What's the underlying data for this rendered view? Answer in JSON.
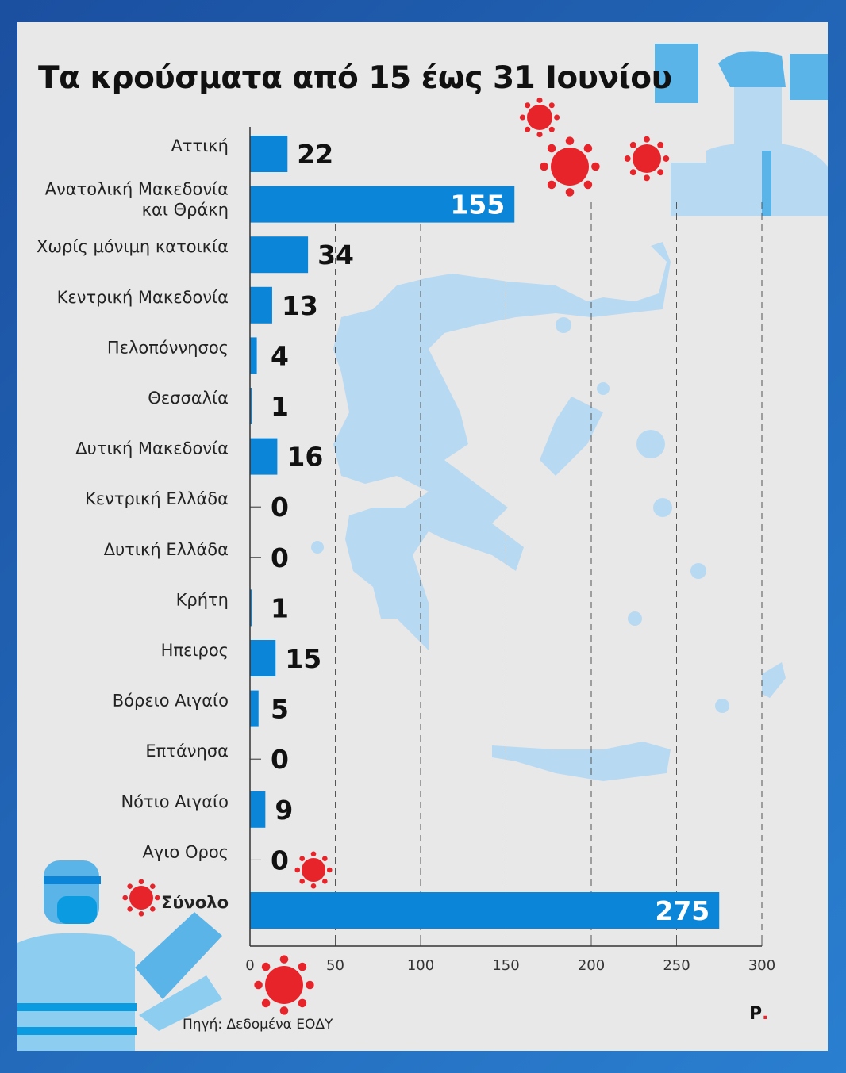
{
  "title": "Τα κρούσματα από 15 έως 31 Ιουνίου",
  "source": "Πηγή: Δεδομένα ΕΟΔΥ",
  "logo": "P",
  "colors": {
    "bar": "#0a85d8",
    "virus": "#e8242b",
    "map": "#b8d9f2",
    "background": "#e8e8e8"
  },
  "chart_data": {
    "type": "bar",
    "orientation": "horizontal",
    "categories": [
      [
        "Αττική"
      ],
      [
        "Ανατολική Μακεδονία",
        "και Θράκη"
      ],
      [
        "Χωρίς μόνιμη κατοικία"
      ],
      [
        "Κεντρική Μακεδονία"
      ],
      [
        "Πελοπόννησος"
      ],
      [
        "Θεσσαλία"
      ],
      [
        "Δυτική Μακεδονία"
      ],
      [
        "Κεντρική Ελλάδα"
      ],
      [
        "Δυτική Ελλάδα"
      ],
      [
        "Κρήτη"
      ],
      [
        "Ηπειρος"
      ],
      [
        "Βόρειο Αιγαίο"
      ],
      [
        "Επτάνησα"
      ],
      [
        "Νότιο Αιγαίο"
      ],
      [
        "Αγιο Ορος"
      ],
      [
        "Σύνολο"
      ]
    ],
    "values": [
      22,
      155,
      34,
      13,
      4,
      1,
      16,
      0,
      0,
      1,
      15,
      5,
      0,
      9,
      0,
      275
    ],
    "xlim": [
      0,
      300
    ],
    "xticks": [
      "0",
      "50",
      "100",
      "150",
      "200",
      "250",
      "300"
    ],
    "grid": "vertical dashed",
    "legend": "none"
  }
}
